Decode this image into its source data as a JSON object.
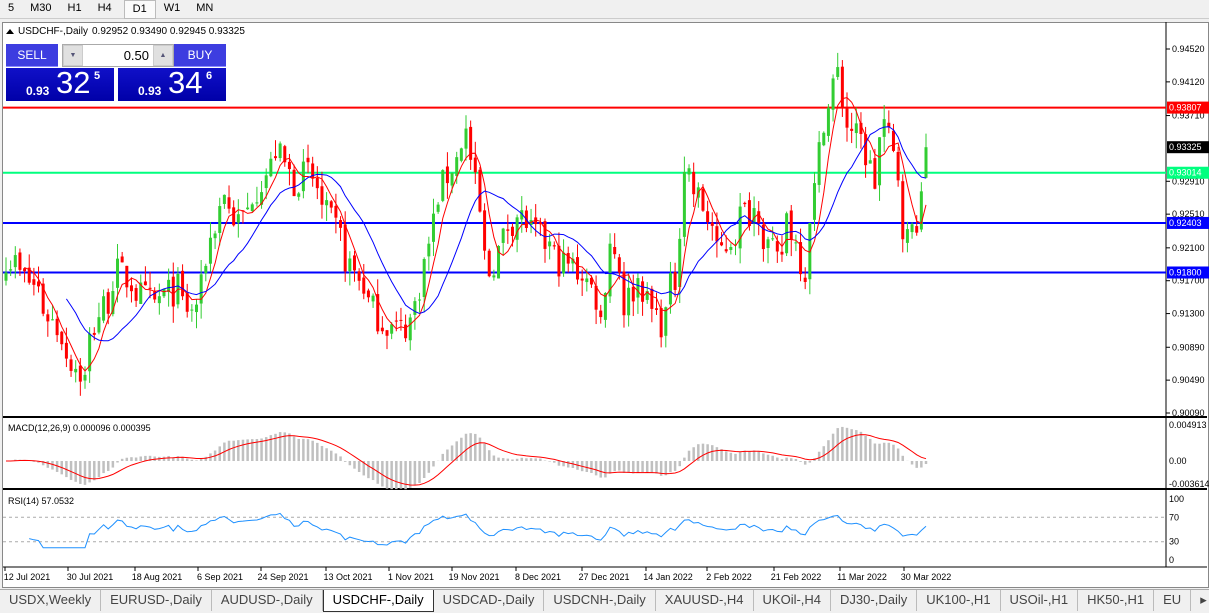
{
  "toolbar": {
    "timeframes": [
      "5",
      "M30",
      "H1",
      "H4",
      "D1",
      "W1",
      "MN"
    ],
    "active": "D1"
  },
  "chart": {
    "title": "USDCHF-,Daily",
    "ohlc": "0.92952 0.93490 0.92945 0.93325"
  },
  "trade": {
    "sell_label": "SELL",
    "buy_label": "BUY",
    "lot": "0.50",
    "sell": {
      "small": "0.93",
      "big": "32",
      "sup": "5"
    },
    "buy": {
      "small": "0.93",
      "big": "34",
      "sup": "6"
    }
  },
  "indicators": {
    "macd_label": "MACD(12,26,9) 0.000096 0.000395",
    "rsi_label": "RSI(14) 57.0532"
  },
  "colors": {
    "bull": "#32cd32",
    "bear": "#ff0000",
    "ma_fast": "#ff0000",
    "ma_slow": "#0000ff",
    "rsi": "#1e90ff",
    "macd_hist": "#c0c0c0",
    "macd_signal": "#ff0000"
  },
  "chart_data": {
    "type": "candlestick",
    "symbol": "USDCHF-",
    "timeframe": "Daily",
    "price_ticks": [
      "0.94520",
      "0.94120",
      "0.93710",
      "0.92910",
      "0.92510",
      "0.92100",
      "0.91700",
      "0.91300",
      "0.90890",
      "0.90490",
      "0.90090"
    ],
    "ylim": [
      0.9009,
      0.9452
    ],
    "date_ticks": [
      "12 Jul 2021",
      "30 Jul 2021",
      "18 Aug 2021",
      "6 Sep 2021",
      "24 Sep 2021",
      "13 Oct 2021",
      "1 Nov 2021",
      "19 Nov 2021",
      "8 Dec 2021",
      "27 Dec 2021",
      "14 Jan 2022",
      "2 Feb 2022",
      "21 Feb 2022",
      "11 Mar 2022",
      "30 Mar 2022"
    ],
    "close_keypoints": [
      [
        "2021-07-07",
        0.92
      ],
      [
        "2021-07-16",
        0.916
      ],
      [
        "2021-07-30",
        0.905
      ],
      [
        "2021-08-04",
        0.913
      ],
      [
        "2021-08-10",
        0.918
      ],
      [
        "2021-08-20",
        0.914
      ],
      [
        "2021-08-27",
        0.916
      ],
      [
        "2021-09-01",
        0.913
      ],
      [
        "2021-09-06",
        0.92
      ],
      [
        "2021-09-10",
        0.928
      ],
      [
        "2021-09-15",
        0.924
      ],
      [
        "2021-09-27",
        0.933
      ],
      [
        "2021-10-01",
        0.929
      ],
      [
        "2021-10-06",
        0.93
      ],
      [
        "2021-10-13",
        0.924
      ],
      [
        "2021-10-20",
        0.918
      ],
      [
        "2021-10-28",
        0.912
      ],
      [
        "2021-11-03",
        0.911
      ],
      [
        "2021-11-08",
        0.914
      ],
      [
        "2021-11-12",
        0.924
      ],
      [
        "2021-11-18",
        0.931
      ],
      [
        "2021-11-23",
        0.935
      ],
      [
        "2021-11-26",
        0.925
      ],
      [
        "2021-11-30",
        0.918
      ],
      [
        "2021-12-03",
        0.922
      ],
      [
        "2021-12-08",
        0.925
      ],
      [
        "2021-12-15",
        0.922
      ],
      [
        "2021-12-22",
        0.919
      ],
      [
        "2021-12-28",
        0.918
      ],
      [
        "2022-01-03",
        0.912
      ],
      [
        "2022-01-05",
        0.922
      ],
      [
        "2022-01-10",
        0.914
      ],
      [
        "2022-01-13",
        0.917
      ],
      [
        "2022-01-20",
        0.912
      ],
      [
        "2022-01-25",
        0.917
      ],
      [
        "2022-01-27",
        0.931
      ],
      [
        "2022-02-01",
        0.927
      ],
      [
        "2022-02-07",
        0.92
      ],
      [
        "2022-02-14",
        0.925
      ],
      [
        "2022-02-18",
        0.926
      ],
      [
        "2022-02-24",
        0.919
      ],
      [
        "2022-02-28",
        0.925
      ],
      [
        "2022-03-04",
        0.918
      ],
      [
        "2022-03-08",
        0.928
      ],
      [
        "2022-03-10",
        0.937
      ],
      [
        "2022-03-15",
        0.942
      ],
      [
        "2022-03-17",
        0.936
      ],
      [
        "2022-03-22",
        0.934
      ],
      [
        "2022-03-25",
        0.929
      ],
      [
        "2022-03-29",
        0.936
      ],
      [
        "2022-03-31",
        0.932
      ],
      [
        "2022-04-05",
        0.922
      ],
      [
        "2022-04-08",
        0.926
      ],
      [
        "2022-04-11",
        0.93325
      ]
    ],
    "current_price": "0.93325",
    "hlines": [
      {
        "price": "0.93807",
        "color": "#ff0000"
      },
      {
        "price": "0.93014",
        "color": "#00ff7f"
      },
      {
        "price": "0.92403",
        "color": "#0000ff"
      },
      {
        "price": "0.91800",
        "color": "#0000ff"
      }
    ],
    "moving_averages": [
      "fast (red)",
      "slow (blue)"
    ],
    "macd": {
      "ticks": [
        "0.004913",
        "0.00",
        "-0.003614"
      ],
      "ylim": [
        -0.003614,
        0.004913
      ]
    },
    "rsi": {
      "ticks": [
        "100",
        "70",
        "30",
        "0"
      ],
      "levels": [
        70,
        30
      ]
    }
  },
  "tabs": [
    "USDX,Weekly",
    "EURUSD-,Daily",
    "AUDUSD-,Daily",
    "USDCHF-,Daily",
    "USDCAD-,Daily",
    "USDCNH-,Daily",
    "XAUUSD-,H4",
    "UKOil-,H4",
    "DJ30-,Daily",
    "UK100-,H1",
    "USOil-,H1",
    "HK50-,H1",
    "EU"
  ],
  "active_tab": "USDCHF-,Daily"
}
